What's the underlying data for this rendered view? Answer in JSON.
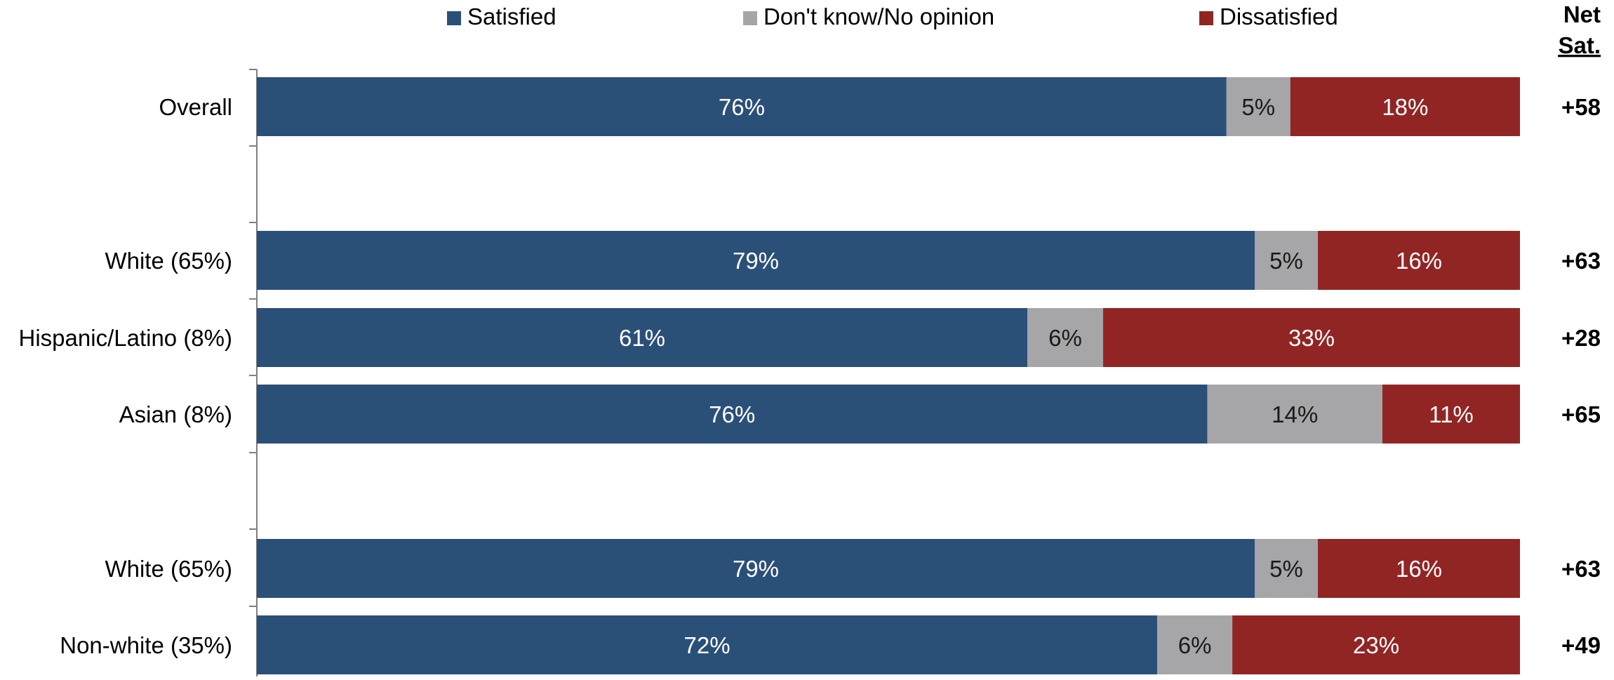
{
  "chart_data": {
    "type": "bar",
    "orientation": "horizontal",
    "stacked": true,
    "xlim": [
      0,
      100
    ],
    "grid": false,
    "legend_position": "top",
    "net_header": [
      "Net",
      "Sat."
    ],
    "colors": {
      "satisfied": "#2a5078",
      "dont_know": "#a6a6a8",
      "dissatisfied": "#912524",
      "axis": "#7f7f7f"
    },
    "series": [
      {
        "name": "Satisfied",
        "key": "satisfied"
      },
      {
        "name": "Don't know/No opinion",
        "key": "dont_know"
      },
      {
        "name": "Dissatisfied",
        "key": "dissatisfied"
      }
    ],
    "categories": [
      "Overall",
      "White (65%)",
      "Hispanic/Latino (8%)",
      "Asian (8%)",
      "White (65%)",
      "Non-white (35%)"
    ],
    "values": {
      "satisfied": [
        76,
        79,
        61,
        76,
        79,
        72
      ],
      "dont_know": [
        5,
        5,
        6,
        14,
        5,
        6
      ],
      "dissatisfied": [
        18,
        16,
        33,
        11,
        16,
        23
      ]
    },
    "net": [
      "+58",
      "+63",
      "+28",
      "+65",
      "+63",
      "+49"
    ]
  }
}
